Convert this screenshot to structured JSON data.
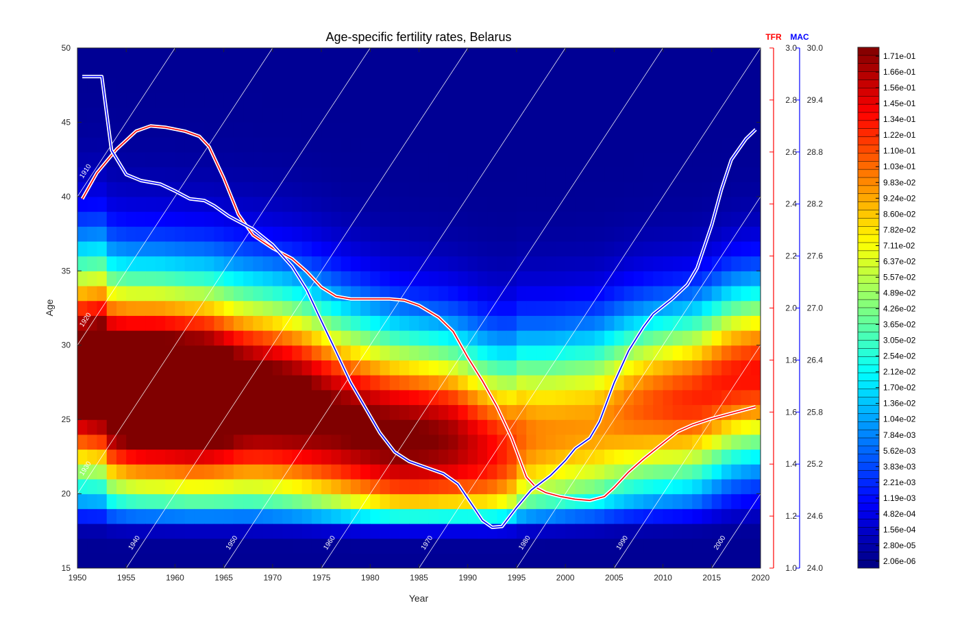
{
  "chart_data": {
    "type": "heatmap",
    "title": "Age-specific fertility rates, Belarus",
    "xlabel": "Year",
    "ylabel": "Age",
    "xlim": [
      1950,
      2020
    ],
    "ylim": [
      15,
      50
    ],
    "x_ticks": [
      "1950",
      "1955",
      "1960",
      "1965",
      "1970",
      "1975",
      "1980",
      "1985",
      "1990",
      "1995",
      "2000",
      "2005",
      "2010",
      "2015",
      "2020"
    ],
    "y_ticks": [
      "15",
      "20",
      "25",
      "30",
      "35",
      "40",
      "45",
      "50"
    ],
    "right_axes": [
      {
        "label": "TFR",
        "color": "#ff0000",
        "range": [
          1.0,
          3.0
        ],
        "ticks": [
          "1.0",
          "1.2",
          "1.4",
          "1.6",
          "1.8",
          "2.0",
          "2.2",
          "2.4",
          "2.6",
          "2.8",
          "3.0"
        ]
      },
      {
        "label": "MAC",
        "color": "#0000ff",
        "range": [
          24.0,
          30.0
        ],
        "ticks": [
          "24.0",
          "24.6",
          "25.2",
          "25.8",
          "26.4",
          "27.0",
          "27.6",
          "28.2",
          "28.8",
          "29.4",
          "30.0"
        ]
      }
    ],
    "colorbar_labels": [
      "1.71e-01",
      "1.66e-01",
      "1.56e-01",
      "1.45e-01",
      "1.34e-01",
      "1.22e-01",
      "1.10e-01",
      "1.03e-01",
      "9.83e-02",
      "9.24e-02",
      "8.60e-02",
      "7.82e-02",
      "7.11e-02",
      "6.37e-02",
      "5.57e-02",
      "4.89e-02",
      "4.26e-02",
      "3.65e-02",
      "3.05e-02",
      "2.54e-02",
      "2.12e-02",
      "1.70e-02",
      "1.36e-02",
      "1.04e-02",
      "7.84e-03",
      "5.62e-03",
      "3.83e-03",
      "2.21e-03",
      "1.19e-03",
      "4.82e-04",
      "1.56e-04",
      "2.80e-05",
      "2.06e-06"
    ],
    "cohort_labels": [
      "1910",
      "1920",
      "1930",
      "1940",
      "1950",
      "1960",
      "1970",
      "1980",
      "1990",
      "2000"
    ],
    "series": [
      {
        "name": "TFR",
        "color": "#ff0000",
        "axis": "TFR",
        "points": [
          [
            1950.5,
            2.42
          ],
          [
            1952,
            2.52
          ],
          [
            1954,
            2.61
          ],
          [
            1956,
            2.68
          ],
          [
            1957.5,
            2.7
          ],
          [
            1959,
            2.695
          ],
          [
            1961,
            2.68
          ],
          [
            1962.5,
            2.66
          ],
          [
            1963.5,
            2.62
          ],
          [
            1965,
            2.5
          ],
          [
            1966.5,
            2.36
          ],
          [
            1968,
            2.28
          ],
          [
            1970,
            2.23
          ],
          [
            1972,
            2.19
          ],
          [
            1973.5,
            2.14
          ],
          [
            1975,
            2.08
          ],
          [
            1976.5,
            2.045
          ],
          [
            1978,
            2.035
          ],
          [
            1980,
            2.035
          ],
          [
            1982,
            2.035
          ],
          [
            1983.5,
            2.03
          ],
          [
            1985,
            2.01
          ],
          [
            1987,
            1.965
          ],
          [
            1988.5,
            1.91
          ],
          [
            1990,
            1.81
          ],
          [
            1991.5,
            1.72
          ],
          [
            1993,
            1.62
          ],
          [
            1994.5,
            1.5
          ],
          [
            1996,
            1.35
          ],
          [
            1997,
            1.31
          ],
          [
            1998,
            1.29
          ],
          [
            1999.5,
            1.275
          ],
          [
            2001,
            1.265
          ],
          [
            2002.5,
            1.26
          ],
          [
            2004,
            1.275
          ],
          [
            2005,
            1.31
          ],
          [
            2006.5,
            1.37
          ],
          [
            2008,
            1.42
          ],
          [
            2010,
            1.48
          ],
          [
            2011.5,
            1.525
          ],
          [
            2013,
            1.55
          ],
          [
            2015,
            1.575
          ],
          [
            2016.5,
            1.59
          ],
          [
            2018,
            1.605
          ],
          [
            2019.5,
            1.62
          ]
        ]
      },
      {
        "name": "MAC",
        "color": "#0000ff",
        "axis": "MAC",
        "points": [
          [
            1950.5,
            29.67
          ],
          [
            1952.5,
            29.67
          ],
          [
            1953.5,
            28.82
          ],
          [
            1955,
            28.54
          ],
          [
            1956.5,
            28.47
          ],
          [
            1958.5,
            28.43
          ],
          [
            1960,
            28.35
          ],
          [
            1961.5,
            28.26
          ],
          [
            1963,
            28.24
          ],
          [
            1964,
            28.18
          ],
          [
            1965.5,
            28.06
          ],
          [
            1968,
            27.91
          ],
          [
            1970,
            27.73
          ],
          [
            1972,
            27.48
          ],
          [
            1973.5,
            27.21
          ],
          [
            1975,
            26.85
          ],
          [
            1976.5,
            26.5
          ],
          [
            1978,
            26.14
          ],
          [
            1979.5,
            25.85
          ],
          [
            1981,
            25.56
          ],
          [
            1982.5,
            25.34
          ],
          [
            1984,
            25.23
          ],
          [
            1985.5,
            25.17
          ],
          [
            1987.5,
            25.09
          ],
          [
            1989,
            24.97
          ],
          [
            1990.5,
            24.72
          ],
          [
            1991.5,
            24.55
          ],
          [
            1992.5,
            24.47
          ],
          [
            1993.5,
            24.48
          ],
          [
            1995,
            24.7
          ],
          [
            1996.5,
            24.9
          ],
          [
            1998.5,
            25.07
          ],
          [
            2000,
            25.24
          ],
          [
            2001,
            25.38
          ],
          [
            2002.5,
            25.5
          ],
          [
            2003.5,
            25.69
          ],
          [
            2005,
            26.14
          ],
          [
            2006.5,
            26.51
          ],
          [
            2008,
            26.78
          ],
          [
            2009,
            26.93
          ],
          [
            2011,
            27.11
          ],
          [
            2012.5,
            27.27
          ],
          [
            2013.5,
            27.46
          ],
          [
            2015,
            27.96
          ],
          [
            2016,
            28.37
          ],
          [
            2017,
            28.71
          ],
          [
            2018.5,
            28.95
          ],
          [
            2019.5,
            29.06
          ]
        ]
      }
    ]
  }
}
